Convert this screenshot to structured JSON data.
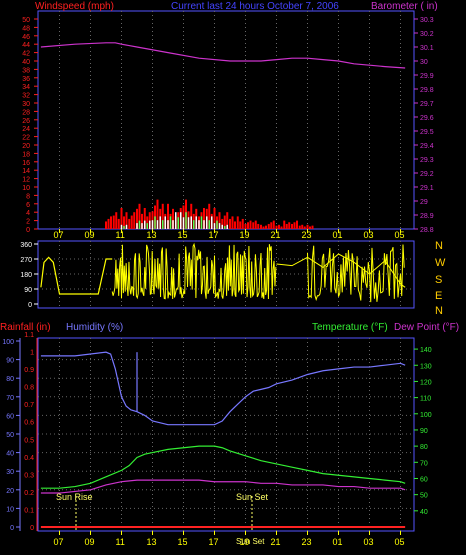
{
  "header": {
    "left_label": "Windspeed (mph)",
    "center_label": "Current last 24 hours October 7, 2006",
    "right_label": "Barometer ( in)"
  },
  "middle": {
    "directions": [
      "N",
      "W",
      "S",
      "E",
      "N"
    ]
  },
  "bottom_header": {
    "rainfall_label": "Rainfall (in)",
    "humidity_label": "Humidity (%)",
    "temperature_label": "Temperature (°F)",
    "dewpoint_label": "Dew Point (°F)"
  },
  "annotations": {
    "sunrise": "Sun Rise",
    "sunset": "Sun Set",
    "sunset_dup": "Sun Set"
  },
  "colors": {
    "background": "#000000",
    "axis": "#5555ff",
    "grid": "#666666",
    "wind_axis": "#ff2020",
    "barometer": "#cc33cc",
    "gusts": "#ff0000",
    "avg_wind": "#ffffff",
    "wind_green": "#55ff55",
    "direction": "#ffff00",
    "humidity": "#7777ff",
    "temperature": "#33ee33",
    "dewpoint": "#cc33cc",
    "rainfall": "#ff2222",
    "time_axis": "#ffff00",
    "compass": "#ffcc00"
  },
  "chart_data": [
    {
      "type": "line",
      "x_ticks": [
        "07",
        "09",
        "11",
        "13",
        "15",
        "17",
        "19",
        "21",
        "23",
        "01",
        "03",
        "05"
      ],
      "left_axis": {
        "ticks": [
          "0",
          "2",
          "4",
          "6",
          "8",
          "10",
          "12",
          "14",
          "16",
          "18",
          "20",
          "22",
          "24",
          "26",
          "28",
          "30",
          "32",
          "34",
          "36",
          "38",
          "40",
          "42",
          "44",
          "46",
          "48",
          "50"
        ],
        "ylim": [
          0,
          50
        ]
      },
      "right_axis": {
        "ticks": [
          "28.8",
          "28.9",
          "29",
          "29.1",
          "29.2",
          "29.3",
          "29.4",
          "29.5",
          "29.6",
          "29.7",
          "29.8",
          "29.9",
          "30",
          "30.1",
          "30.2",
          "30.3"
        ],
        "ylim": [
          28.8,
          30.3
        ]
      },
      "series": [
        {
          "x": [
            5.8,
            8,
            10,
            10.6,
            11,
            12,
            14,
            16,
            18,
            20,
            21,
            22,
            23,
            24,
            25,
            26,
            27,
            28,
            29.3
          ],
          "values": [
            30.1,
            30.12,
            30.13,
            30.13,
            30.12,
            30.1,
            30.06,
            30.02,
            30.0,
            30.0,
            30.01,
            30.02,
            30.02,
            30.01,
            30.0,
            29.98,
            29.97,
            29.96,
            29.95
          ]
        },
        {
          "x": [
            10,
            10.5,
            11,
            11.5,
            12,
            12.5,
            13,
            13.5,
            14,
            14.5,
            15,
            15.5,
            16,
            16.5,
            17,
            17.5,
            18,
            18.5,
            19,
            19.5,
            20,
            20.5,
            21,
            21.5,
            22,
            22.5,
            23,
            23.5,
            24
          ],
          "values": [
            3,
            4,
            5,
            4,
            6,
            5,
            7,
            6,
            6,
            5,
            7,
            6,
            5,
            6,
            5,
            4,
            3,
            3,
            2,
            2,
            1,
            2,
            1,
            2,
            2,
            1,
            1,
            0,
            0
          ]
        },
        {
          "x": [
            10,
            11,
            12,
            12.5,
            13,
            13.5,
            14,
            14.5,
            15,
            15.5,
            16,
            16.5,
            17,
            17.5,
            18
          ],
          "values": [
            0,
            1,
            2,
            2,
            3,
            3,
            3,
            4,
            4,
            3,
            3,
            3,
            2,
            1,
            0
          ]
        }
      ]
    },
    {
      "type": "scatter",
      "x_ticks": [
        "07",
        "09",
        "11",
        "13",
        "15",
        "17",
        "19",
        "21",
        "23",
        "01",
        "03",
        "05"
      ],
      "y_ticks": [
        "0",
        "90",
        "180",
        "270",
        "360"
      ],
      "ylim": [
        0,
        360
      ],
      "series": [
        {
          "x": [
            5.8,
            6.0,
            6.3,
            6.6,
            7.0,
            8.0,
            9.0,
            9.5,
            10,
            10.4
          ],
          "values": [
            100,
            250,
            280,
            250,
            60,
            60,
            60,
            60,
            270,
            270
          ]
        },
        {
          "x": [
            21,
            22,
            23,
            24,
            25,
            26,
            27,
            28,
            29,
            29.3
          ],
          "values": [
            240,
            230,
            280,
            220,
            300,
            250,
            180,
            260,
            120,
            100
          ]
        }
      ]
    },
    {
      "type": "line",
      "x_ticks": [
        "07",
        "09",
        "11",
        "13",
        "15",
        "17",
        "19",
        "21",
        "23",
        "01",
        "03",
        "05"
      ],
      "humidity_axis": {
        "ticks": [
          "0",
          "10",
          "20",
          "30",
          "40",
          "50",
          "60",
          "70",
          "80",
          "90",
          "100"
        ],
        "ylim": [
          0,
          100
        ]
      },
      "rainfall_axis": {
        "ticks": [
          "0",
          "0.1",
          "0.2",
          "0.3",
          "0.4",
          "0.5",
          "0.6",
          "0.7",
          "0.8",
          "0.9",
          "1",
          "1.1"
        ],
        "ylim": [
          0,
          1.1
        ]
      },
      "temperature_axis": {
        "ticks": [
          "40",
          "50",
          "60",
          "70",
          "80",
          "90",
          "100",
          "110",
          "120",
          "130",
          "140"
        ],
        "ylim": [
          30,
          145
        ]
      },
      "series": [
        {
          "x": [
            5.8,
            7,
            8,
            9,
            10,
            10.3,
            10.6,
            11,
            11.3,
            11.6,
            12,
            12.5,
            13,
            13.5,
            14,
            15,
            16,
            17,
            17.5,
            18,
            18.5,
            19,
            19.5,
            20,
            20.5,
            21,
            22,
            23,
            24,
            25,
            26,
            27,
            28,
            29,
            29.3
          ],
          "values": [
            92,
            92,
            92,
            93,
            94,
            93,
            85,
            70,
            65,
            63,
            62,
            60,
            57,
            56,
            55,
            55,
            55,
            55,
            57,
            62,
            66,
            70,
            73,
            74,
            75,
            77,
            79,
            82,
            84,
            85,
            86,
            86,
            87,
            88,
            87
          ]
        },
        {
          "x": [
            5.8,
            7,
            8,
            9,
            10,
            11,
            11.5,
            12,
            12.5,
            13,
            14,
            15,
            16,
            17,
            17.5,
            18,
            19,
            20,
            21,
            22,
            23,
            24,
            25,
            26,
            27,
            28,
            29,
            29.3
          ],
          "values": [
            54,
            54,
            55,
            57,
            61,
            65,
            68,
            73,
            75,
            76,
            78,
            79,
            80,
            80,
            79,
            77,
            74,
            71,
            69,
            67,
            65,
            63,
            62,
            61,
            60,
            59,
            58,
            57
          ]
        },
        {
          "x": [
            5.8,
            7,
            8,
            9,
            10,
            11,
            12,
            13,
            14,
            15,
            16,
            17,
            18,
            19,
            20,
            21,
            22,
            23,
            24,
            25,
            26,
            27,
            28,
            29,
            29.3
          ],
          "values": [
            51,
            51,
            52,
            53,
            56,
            58,
            59,
            59,
            59,
            59,
            59,
            58,
            58,
            58,
            57,
            57,
            56,
            56,
            56,
            55,
            55,
            54,
            54,
            54,
            53
          ]
        },
        {
          "x": [
            5.8,
            29.3
          ],
          "values": [
            0,
            0
          ]
        }
      ]
    }
  ]
}
